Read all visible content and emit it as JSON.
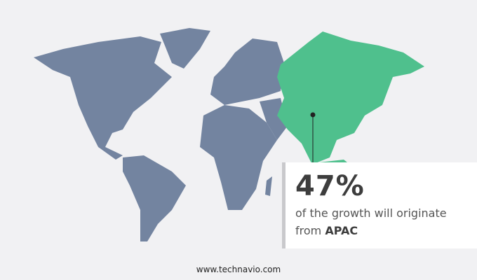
{
  "map": {
    "highlight_region": "APAC",
    "colors": {
      "base": "#7384a0",
      "highlight": "#4fc08d",
      "background": "#f1f1f3"
    }
  },
  "callout": {
    "value": "47%",
    "text": "of the growth will originate",
    "prefix": "from",
    "region": "APAC"
  },
  "footer": {
    "url": "www.technavio.com"
  }
}
